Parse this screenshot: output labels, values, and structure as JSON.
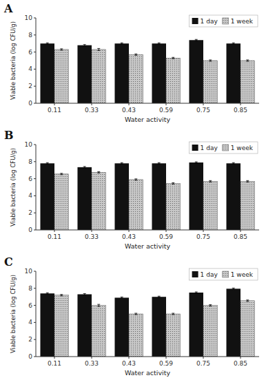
{
  "chart_data": [
    {
      "type": "bar",
      "title": "A",
      "categories": [
        "0.11",
        "0.33",
        "0.43",
        "0.59",
        "0.75",
        "0.85"
      ],
      "series": [
        {
          "name": "1 day",
          "color": "#111111",
          "values": [
            7.0,
            6.8,
            7.0,
            7.0,
            7.4,
            7.0
          ],
          "errors": [
            0.08,
            0.08,
            0.08,
            0.08,
            0.08,
            0.08
          ]
        },
        {
          "name": "1 week",
          "color": "#c8c8c8",
          "values": [
            6.3,
            6.3,
            5.7,
            5.3,
            5.0,
            5.0
          ],
          "errors": [
            0.08,
            0.12,
            0.08,
            0.08,
            0.08,
            0.08
          ]
        }
      ],
      "xlabel": "Water activity",
      "ylabel": "Viable bacteria (log CFU/g)",
      "ylim": [
        0,
        10
      ],
      "yticks": [
        0,
        2,
        4,
        6,
        8,
        10
      ],
      "grid": false,
      "legend": "upper right"
    },
    {
      "type": "bar",
      "title": "B",
      "categories": [
        "0.11",
        "0.33",
        "0.43",
        "0.59",
        "0.75",
        "0.85"
      ],
      "series": [
        {
          "name": "1 day",
          "color": "#111111",
          "values": [
            7.8,
            7.35,
            7.8,
            7.8,
            7.9,
            7.8
          ],
          "errors": [
            0.08,
            0.08,
            0.08,
            0.08,
            0.08,
            0.08
          ]
        },
        {
          "name": "1 week",
          "color": "#c8c8c8",
          "values": [
            6.55,
            6.75,
            5.9,
            5.45,
            5.7,
            5.7
          ],
          "errors": [
            0.08,
            0.08,
            0.08,
            0.08,
            0.08,
            0.08
          ]
        }
      ],
      "xlabel": "Water activity",
      "ylabel": "Viable bacteria (log CFU/g)",
      "ylim": [
        0,
        10
      ],
      "yticks": [
        0,
        2,
        4,
        6,
        8,
        10
      ],
      "grid": false,
      "legend": "upper right"
    },
    {
      "type": "bar",
      "title": "C",
      "categories": [
        "0.11",
        "0.33",
        "0.43",
        "0.59",
        "0.75",
        "0.85"
      ],
      "series": [
        {
          "name": "1 day",
          "color": "#111111",
          "values": [
            7.4,
            7.3,
            6.9,
            7.0,
            7.5,
            7.95
          ],
          "errors": [
            0.08,
            0.08,
            0.08,
            0.08,
            0.08,
            0.08
          ]
        },
        {
          "name": "1 week",
          "color": "#c8c8c8",
          "values": [
            7.2,
            6.0,
            5.0,
            5.0,
            6.0,
            6.55
          ],
          "errors": [
            0.08,
            0.12,
            0.08,
            0.08,
            0.08,
            0.08
          ]
        }
      ],
      "xlabel": "Water activity",
      "ylabel": "Viable bacteria (log CFU/g)",
      "ylim": [
        0,
        10
      ],
      "yticks": [
        0,
        2,
        4,
        6,
        8,
        10
      ],
      "grid": false,
      "legend": "upper right"
    }
  ]
}
